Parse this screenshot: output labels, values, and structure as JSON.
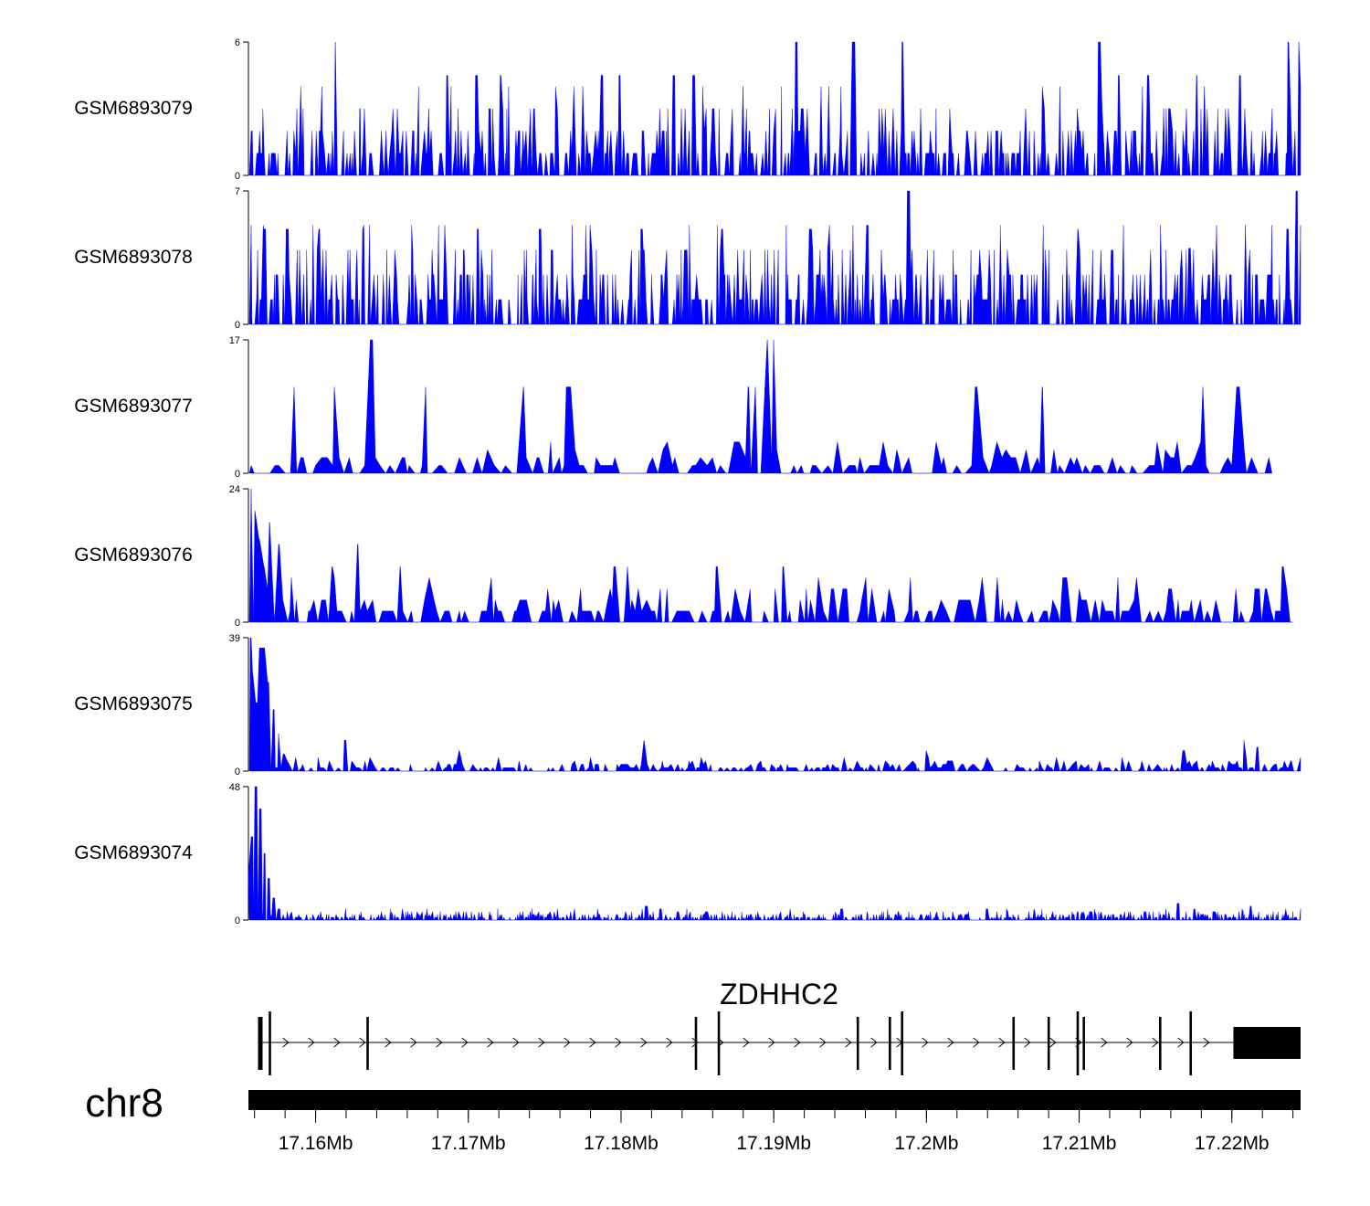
{
  "chart_data": {
    "type": "area",
    "title": "",
    "chromosome": "chr8",
    "x_range_mb": [
      17.1556,
      17.2245
    ],
    "x_ticks": [
      "17.16Mb",
      "17.17Mb",
      "17.18Mb",
      "17.19Mb",
      "17.2Mb",
      "17.21Mb",
      "17.22Mb"
    ],
    "x_tick_values_mb": [
      17.16,
      17.17,
      17.18,
      17.19,
      17.2,
      17.21,
      17.22
    ],
    "fill_color": "#0000ff",
    "tracks": [
      {
        "name": "GSM6893079",
        "ylim": [
          0,
          6
        ],
        "tick_labels": [
          "6",
          "0"
        ],
        "baseline": 1.0,
        "density": 2.6,
        "peaks": [
          [
            17.1613,
            6
          ],
          [
            17.1686,
            4.5
          ],
          [
            17.1705,
            4.5
          ],
          [
            17.1721,
            4.5
          ],
          [
            17.1787,
            4.5
          ],
          [
            17.1799,
            4.5
          ],
          [
            17.1834,
            4.5
          ],
          [
            17.1847,
            4.5
          ],
          [
            17.1914,
            6
          ],
          [
            17.1952,
            6
          ],
          [
            17.1984,
            6
          ],
          [
            17.2113,
            6
          ],
          [
            17.2126,
            4.5
          ],
          [
            17.2145,
            4.5
          ],
          [
            17.2177,
            4.5
          ],
          [
            17.2159,
            3
          ],
          [
            17.2205,
            4.5
          ],
          [
            17.2237,
            6
          ],
          [
            17.2244,
            6
          ]
        ]
      },
      {
        "name": "GSM6893078",
        "ylim": [
          0,
          7
        ],
        "tick_labels": [
          "7",
          "0"
        ],
        "baseline": 1.3,
        "density": 3.0,
        "peaks": [
          [
            17.1566,
            5
          ],
          [
            17.1581,
            5
          ],
          [
            17.1602,
            5
          ],
          [
            17.1631,
            5
          ],
          [
            17.1706,
            5
          ],
          [
            17.1747,
            5
          ],
          [
            17.1813,
            5
          ],
          [
            17.1866,
            5
          ],
          [
            17.1924,
            5
          ],
          [
            17.1988,
            7
          ],
          [
            17.2048,
            4
          ],
          [
            17.2099,
            5
          ],
          [
            17.2172,
            4
          ],
          [
            17.2236,
            5
          ],
          [
            17.2242,
            7
          ]
        ]
      },
      {
        "name": "GSM6893077",
        "ylim": [
          0,
          17
        ],
        "tick_labels": [
          "17",
          "0"
        ],
        "baseline": 1.0,
        "density": 0.85,
        "peaks": [
          [
            17.1586,
            11
          ],
          [
            17.1612,
            11
          ],
          [
            17.1636,
            17
          ],
          [
            17.1672,
            11
          ],
          [
            17.1736,
            11
          ],
          [
            17.1764,
            11
          ],
          [
            17.1766,
            11
          ],
          [
            17.1883,
            11
          ],
          [
            17.1888,
            11
          ],
          [
            17.1896,
            17
          ],
          [
            17.19,
            17
          ],
          [
            17.2032,
            11
          ],
          [
            17.2076,
            11
          ],
          [
            17.2181,
            11
          ],
          [
            17.2203,
            11
          ],
          [
            17.2205,
            11
          ]
        ],
        "end_mb": 17.2229
      },
      {
        "name": "GSM6893076",
        "ylim": [
          0,
          24
        ],
        "tick_labels": [
          "24",
          "0"
        ],
        "baseline": 2.0,
        "density": 1.1,
        "peaks": [
          [
            17.1558,
            24
          ],
          [
            17.156,
            20
          ],
          [
            17.1563,
            15
          ],
          [
            17.1566,
            10
          ],
          [
            17.157,
            18
          ],
          [
            17.1576,
            14
          ],
          [
            17.1584,
            8
          ],
          [
            17.1628,
            14
          ],
          [
            17.1611,
            10
          ],
          [
            17.1655,
            10
          ],
          [
            17.1795,
            10
          ],
          [
            17.1804,
            10
          ],
          [
            17.1862,
            10
          ],
          [
            17.1906,
            10
          ],
          [
            17.2233,
            10
          ]
        ],
        "end_mb": 17.2241
      },
      {
        "name": "GSM6893075",
        "ylim": [
          0,
          39
        ],
        "tick_labels": [
          "39",
          "0"
        ],
        "baseline": 1.0,
        "density": 1.6,
        "peaks": [
          [
            17.1557,
            39
          ],
          [
            17.1559,
            28
          ],
          [
            17.1561,
            20
          ],
          [
            17.1563,
            36
          ],
          [
            17.1566,
            36
          ],
          [
            17.1569,
            26
          ],
          [
            17.1572,
            18
          ],
          [
            17.1576,
            11
          ],
          [
            17.1579,
            5
          ],
          [
            17.1619,
            9
          ],
          [
            17.1694,
            6
          ],
          [
            17.1815,
            9
          ],
          [
            17.2,
            6
          ],
          [
            17.2168,
            6
          ],
          [
            17.2208,
            9
          ],
          [
            17.2216,
            7
          ],
          [
            17.2239,
            3
          ]
        ]
      },
      {
        "name": "GSM6893074",
        "ylim": [
          0,
          48
        ],
        "tick_labels": [
          "48",
          "0"
        ],
        "baseline": 1.0,
        "density": 4.0,
        "peaks": [
          [
            17.1556,
            16
          ],
          [
            17.1558,
            30
          ],
          [
            17.1561,
            48
          ],
          [
            17.1563,
            40
          ],
          [
            17.1566,
            24
          ],
          [
            17.1569,
            15
          ],
          [
            17.1572,
            8
          ],
          [
            17.1576,
            4
          ],
          [
            17.1816,
            5
          ],
          [
            17.1826,
            4
          ],
          [
            17.1856,
            3
          ],
          [
            17.1944,
            4
          ],
          [
            17.2039,
            4
          ],
          [
            17.2107,
            3
          ],
          [
            17.2143,
            3
          ],
          [
            17.2164,
            6
          ],
          [
            17.2175,
            4
          ],
          [
            17.2212,
            5
          ]
        ]
      }
    ],
    "gene": {
      "name": "ZDHHC2",
      "strand": "+",
      "start_mb": 17.1563,
      "end_mb": 17.2245,
      "exons_mb": [
        17.1563,
        17.157,
        17.1634,
        17.1849,
        17.1864,
        17.1955,
        17.1976,
        17.1984,
        17.2057,
        17.208,
        17.2099,
        17.2103,
        17.2153,
        17.2173
      ],
      "utr_block_mb": [
        17.2201,
        17.2245
      ]
    }
  }
}
